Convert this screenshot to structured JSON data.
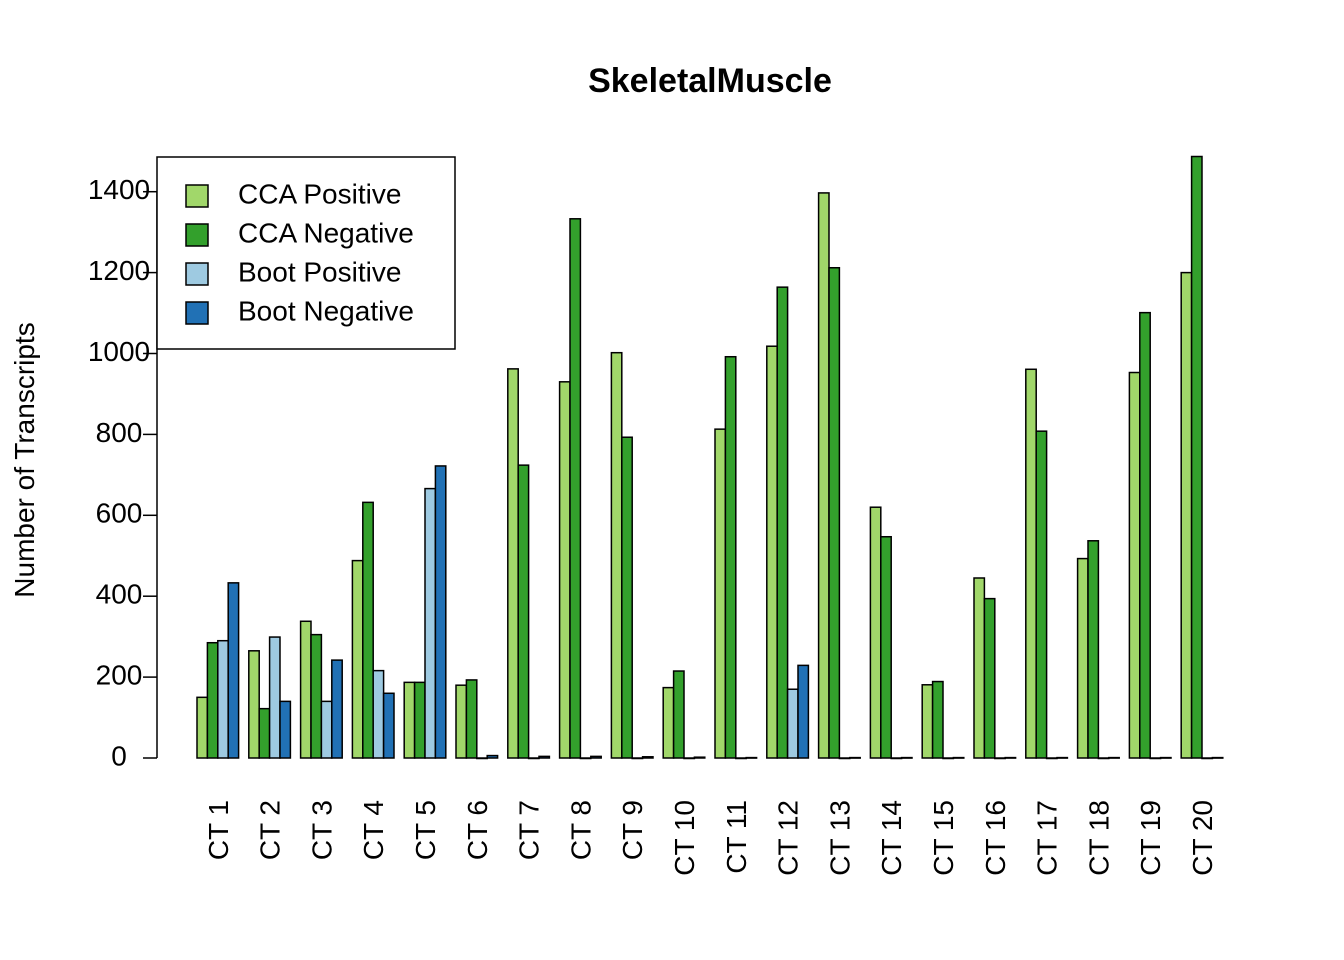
{
  "chart_data": {
    "type": "bar",
    "title": "SkeletalMuscle",
    "xlabel": "",
    "ylabel": "Number of Transcripts",
    "ylim": [
      0,
      1500
    ],
    "yticks": [
      0,
      200,
      400,
      600,
      800,
      1000,
      1200,
      1400
    ],
    "yticks_text": [
      "0",
      "200",
      "400",
      "600",
      "800",
      "1000",
      "1200",
      "1400"
    ],
    "categories": [
      "CT 1",
      "CT 2",
      "CT 3",
      "CT 4",
      "CT 5",
      "CT 6",
      "CT 7",
      "CT 8",
      "CT 9",
      "CT 10",
      "CT 11",
      "CT 12",
      "CT 13",
      "CT 14",
      "CT 15",
      "CT 16",
      "CT 17",
      "CT 18",
      "CT 19",
      "CT 20"
    ],
    "legend_position": "top-left",
    "series": [
      {
        "name": "CCA Positive",
        "color": "#A1D76A",
        "values": [
          150,
          265,
          338,
          488,
          187,
          180,
          962,
          930,
          1002,
          174,
          813,
          1018,
          1397,
          620,
          181,
          445,
          961,
          493,
          953,
          1200
        ]
      },
      {
        "name": "CCA Negative",
        "color": "#33A02C",
        "values": [
          285,
          122,
          305,
          632,
          187,
          193,
          724,
          1333,
          793,
          215,
          992,
          1164,
          1212,
          547,
          189,
          394,
          808,
          537,
          1101,
          1487
        ]
      },
      {
        "name": "Boot Positive",
        "color": "#9ECAE1",
        "values": [
          290,
          299,
          140,
          216,
          666,
          0,
          0,
          0,
          0,
          0,
          0,
          170,
          0,
          0,
          0,
          0,
          0,
          0,
          0,
          0
        ]
      },
      {
        "name": "Boot Negative",
        "color": "#2171B5",
        "values": [
          433,
          140,
          242,
          160,
          722,
          6,
          4,
          4,
          3,
          2,
          1,
          229,
          1,
          1,
          1,
          1,
          1,
          1,
          1,
          1
        ]
      }
    ]
  }
}
